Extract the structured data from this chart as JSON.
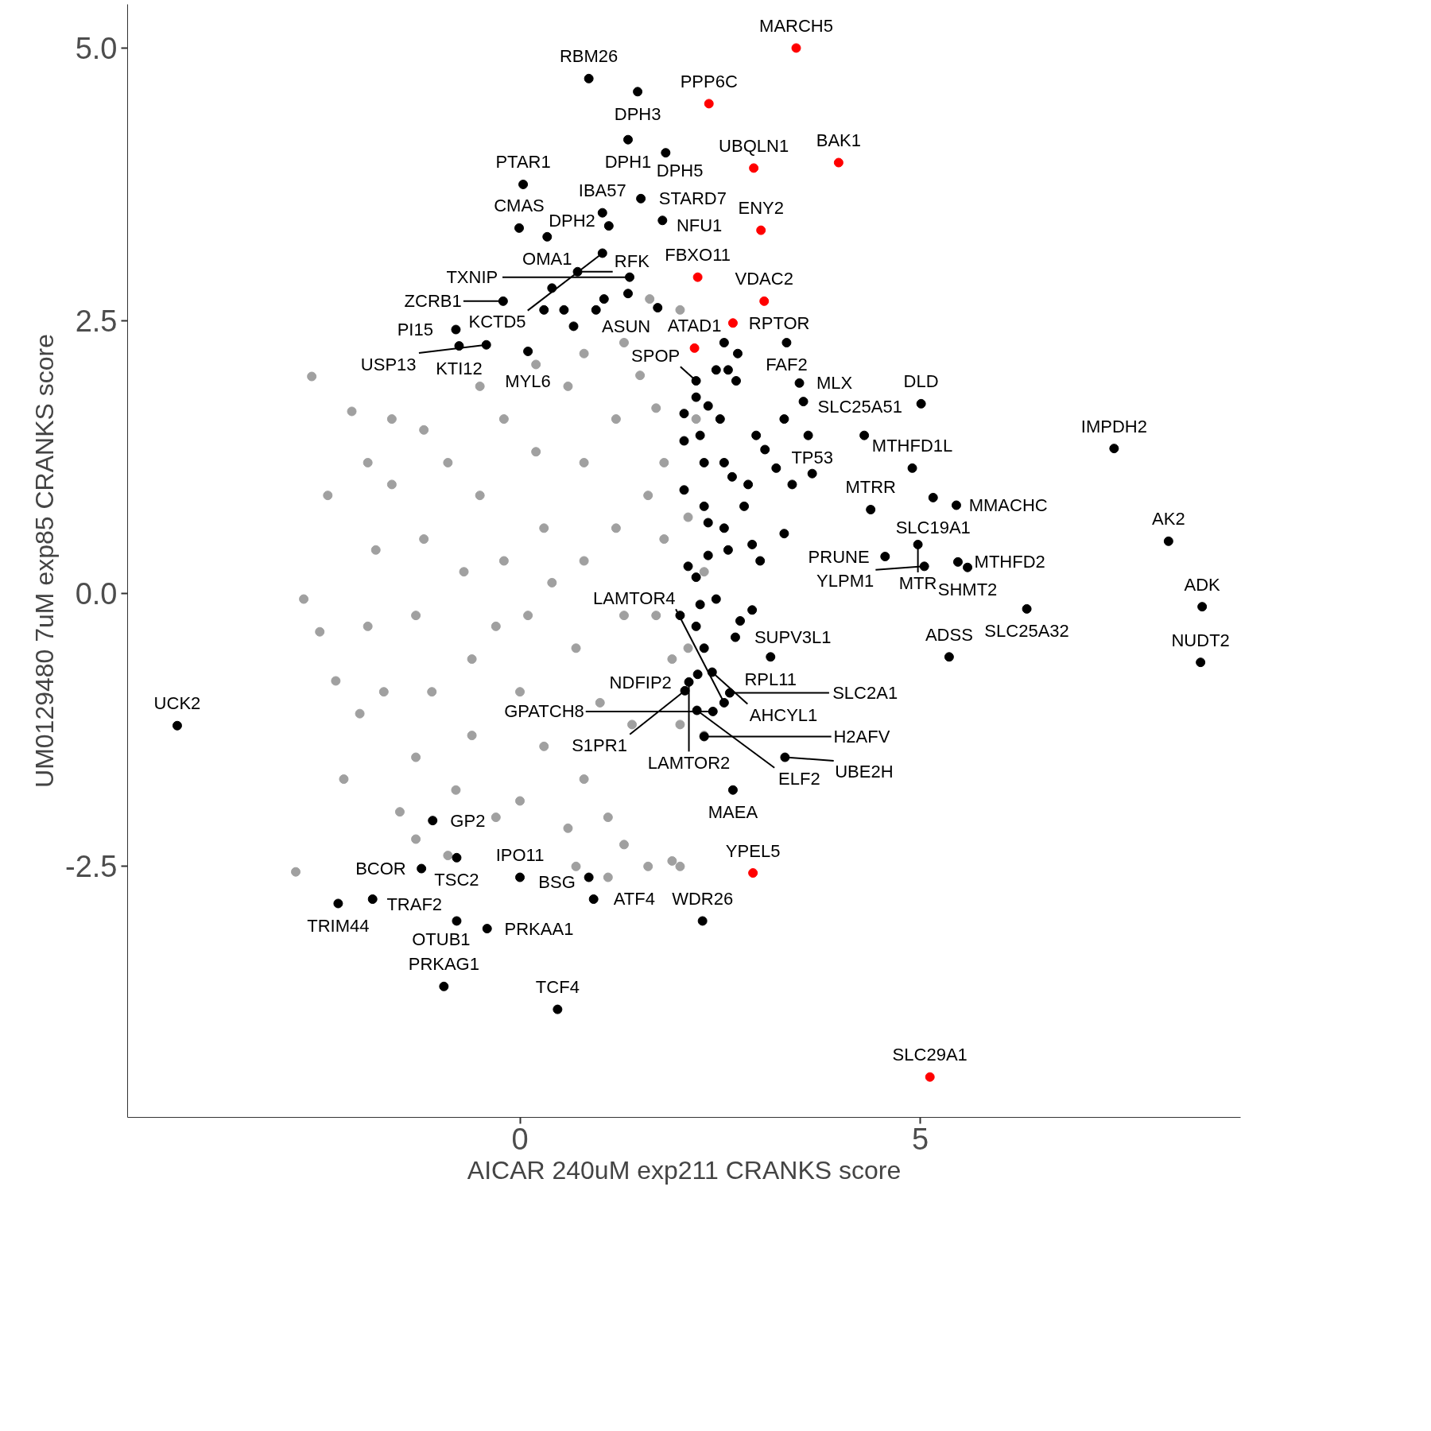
{
  "chart_data": {
    "type": "scatter",
    "xlabel": "AICAR 240uM exp211 CRANKS score",
    "ylabel": "UM0129480 7uM exp85 CRANKS score",
    "xlim": [
      -4.9,
      9.0
    ],
    "ylim": [
      -4.8,
      5.4
    ],
    "xticks": [
      0,
      5
    ],
    "yticks": [
      {
        "value": -2.5,
        "label": "-2.5"
      },
      {
        "value": 0,
        "label": "0.0"
      },
      {
        "value": 2.5,
        "label": "2.5"
      },
      {
        "value": 5,
        "label": "5.0"
      }
    ],
    "grid": false,
    "marker": "circle",
    "series": [
      {
        "color": "#a0a0a0",
        "x": [
          -2.6,
          -2.1,
          -1.6,
          -2.4,
          -1.9,
          -2.7,
          -2.5,
          -2.3,
          -2.0,
          -2.2,
          -1.5,
          -2.8,
          -1.3,
          -0.9,
          -0.3,
          0.6,
          1.1,
          1.3,
          1.6,
          1.9,
          1.9,
          1.8,
          1.8,
          1.7,
          1.3,
          0.8,
          0.2,
          -0.5,
          -1.2,
          -1.6,
          -1.8,
          -1.9,
          -1.7,
          -1.3,
          -0.8,
          0.0,
          0.8,
          1.4,
          1.7,
          1.6,
          1.2,
          0.6,
          -0.2,
          -0.9,
          -1.2,
          -1.3,
          -1.1,
          -0.6,
          0.3,
          1.0,
          1.3,
          1.2,
          0.8,
          0.2,
          -0.5,
          -0.7,
          -0.6,
          0.0,
          0.7,
          0.8,
          0.3,
          -0.2,
          0.1,
          0.4,
          -0.3,
          1.5,
          1.62,
          2.0,
          2.2,
          2.1,
          2.3,
          2.1,
          2.0,
          2.3,
          2.0,
          0.7,
          1.1
        ],
        "values": [
          1.99,
          1.67,
          1.6,
          0.9,
          1.2,
          -0.05,
          -0.35,
          -0.8,
          -1.1,
          -1.7,
          -2.0,
          -2.55,
          -2.25,
          -2.4,
          -2.05,
          -2.15,
          -2.05,
          -2.3,
          -2.5,
          -2.45,
          -0.6,
          0.5,
          1.2,
          1.7,
          2.3,
          2.2,
          2.1,
          1.9,
          1.5,
          1.0,
          0.4,
          -0.3,
          -0.9,
          -1.5,
          -1.8,
          -1.9,
          -1.7,
          -1.2,
          -0.2,
          0.9,
          1.6,
          1.9,
          1.6,
          1.2,
          0.5,
          -0.2,
          -0.9,
          -1.3,
          -1.4,
          -1.0,
          -0.2,
          0.6,
          1.2,
          1.3,
          0.9,
          0.2,
          -0.6,
          -0.9,
          -0.5,
          0.3,
          0.6,
          0.3,
          -0.2,
          0.1,
          -0.3,
          2.0,
          2.7,
          2.6,
          1.6,
          0.7,
          0.2,
          -0.5,
          -1.2,
          -1.3,
          -2.5,
          -2.5,
          -2.6
        ]
      },
      {
        "color": "#000000",
        "x": [
          0.86,
          1.47,
          1.35,
          1.82,
          0.04,
          1.03,
          1.51,
          -0.01,
          1.11,
          1.78,
          0.34,
          1.03,
          1.37,
          0.72,
          -0.21,
          1.72,
          -0.8,
          -0.76,
          -0.42,
          0.1,
          2.2,
          3.33,
          3.49,
          3.54,
          5.01,
          3.06,
          4.9,
          7.42,
          4.38,
          5.16,
          5.45,
          4.97,
          5.47,
          8.1,
          4.56,
          8.52,
          5.59,
          5.05,
          6.33,
          8.5,
          5.36,
          2.69,
          3.13,
          2.22,
          2.11,
          2.06,
          2.62,
          2.41,
          2.21,
          2.3,
          3.31,
          2.66,
          -4.28,
          -1.09,
          -0.79,
          -1.23,
          -2.27,
          -1.84,
          -0.79,
          -0.41,
          0.0,
          -0.95,
          0.47,
          0.86,
          0.92,
          2.28,
          2.4,
          2.55,
          2.05,
          2.2,
          2.35,
          2.5,
          2.7,
          2.72,
          2.6,
          2.45,
          2.05,
          2.25,
          2.55,
          2.65,
          2.3,
          2.85,
          2.95,
          3.3,
          3.6,
          3.2,
          3.4,
          3.65,
          4.3,
          2.05,
          2.3,
          2.35,
          2.55,
          2.8,
          2.9,
          3.0,
          3.3,
          2.6,
          2.35,
          2.1,
          2.2,
          2.25,
          2.45,
          2.0,
          2.2,
          2.3,
          2.75,
          2.9,
          0.3,
          0.55,
          0.67,
          0.95,
          1.05,
          0.4,
          1.35,
          2.55
        ],
        "values": [
          4.72,
          4.6,
          4.16,
          4.04,
          3.75,
          3.49,
          3.62,
          3.35,
          3.37,
          3.42,
          3.27,
          3.12,
          2.9,
          2.95,
          2.68,
          2.62,
          2.42,
          2.27,
          2.28,
          2.22,
          1.95,
          2.3,
          1.93,
          1.76,
          1.74,
          1.32,
          1.15,
          1.33,
          0.77,
          0.88,
          0.81,
          0.45,
          0.29,
          0.48,
          0.34,
          -0.12,
          0.24,
          0.25,
          -0.14,
          -0.63,
          -0.58,
          -0.4,
          -0.58,
          -0.74,
          -0.81,
          -0.89,
          -0.91,
          -1.08,
          -1.07,
          -1.31,
          -1.5,
          -1.8,
          -1.21,
          -2.08,
          -2.42,
          -2.52,
          -2.84,
          -2.8,
          -3.0,
          -3.07,
          -2.6,
          -3.6,
          -3.81,
          -2.6,
          -2.8,
          -3.0,
          -0.72,
          -1.0,
          1.65,
          1.8,
          1.72,
          1.6,
          1.95,
          2.2,
          2.05,
          2.05,
          1.4,
          1.45,
          1.2,
          1.07,
          1.2,
          1.0,
          1.45,
          1.6,
          1.45,
          1.15,
          1.0,
          1.1,
          1.45,
          0.95,
          0.8,
          0.65,
          0.6,
          0.8,
          0.45,
          0.3,
          0.55,
          0.4,
          0.35,
          0.25,
          0.15,
          -0.1,
          -0.05,
          -0.2,
          -0.3,
          -0.5,
          -0.25,
          -0.15,
          2.6,
          2.6,
          2.45,
          2.6,
          2.7,
          2.8,
          2.75,
          2.3
        ]
      },
      {
        "color": "#ff0000",
        "x": [
          3.45,
          2.36,
          3.98,
          2.92,
          3.01,
          2.22,
          3.05,
          2.66,
          2.18,
          2.91,
          5.12
        ],
        "values": [
          5.0,
          4.49,
          3.95,
          3.9,
          3.33,
          2.9,
          2.68,
          2.48,
          2.25,
          -2.56,
          -4.43
        ]
      }
    ],
    "annotations": [
      {
        "text": "MARCH5",
        "x": 3.45,
        "y": 5.0
      },
      {
        "text": "PPP6C",
        "x": 2.36,
        "y": 4.49
      },
      {
        "text": "BAK1",
        "x": 3.98,
        "y": 3.95
      },
      {
        "text": "UBQLN1",
        "x": 2.92,
        "y": 3.9
      },
      {
        "text": "ENY2",
        "x": 3.01,
        "y": 3.33
      },
      {
        "text": "FBXO11",
        "x": 2.22,
        "y": 2.9
      },
      {
        "text": "VDAC2",
        "x": 3.05,
        "y": 2.68
      },
      {
        "text": "RPTOR",
        "x": 2.66,
        "y": 2.48
      },
      {
        "text": "ATAD1",
        "x": 2.18,
        "y": 2.25
      },
      {
        "text": "YPEL5",
        "x": 2.91,
        "y": -2.56
      },
      {
        "text": "SLC29A1",
        "x": 5.12,
        "y": -4.43
      },
      {
        "text": "RBM26",
        "x": 0.86,
        "y": 4.72
      },
      {
        "text": "DPH3",
        "x": 1.47,
        "y": 4.6
      },
      {
        "text": "DPH1",
        "x": 1.35,
        "y": 4.16
      },
      {
        "text": "DPH5",
        "x": 1.82,
        "y": 4.04
      },
      {
        "text": "PTAR1",
        "x": 0.04,
        "y": 3.75
      },
      {
        "text": "IBA57",
        "x": 1.03,
        "y": 3.49
      },
      {
        "text": "STARD7",
        "x": 1.51,
        "y": 3.62
      },
      {
        "text": "CMAS",
        "x": -0.01,
        "y": 3.35
      },
      {
        "text": "DPH2",
        "x": 1.11,
        "y": 3.37
      },
      {
        "text": "NFU1",
        "x": 1.78,
        "y": 3.42
      },
      {
        "text": "OMA1",
        "x": 0.34,
        "y": 3.27
      },
      {
        "text": "KCTD5",
        "x": 1.03,
        "y": 3.12
      },
      {
        "text": "TXNIP",
        "x": 1.37,
        "y": 2.9
      },
      {
        "text": "RFK",
        "x": 0.72,
        "y": 2.95
      },
      {
        "text": "ZCRB1",
        "x": -0.21,
        "y": 2.68
      },
      {
        "text": "ASUN",
        "x": 1.72,
        "y": 2.62
      },
      {
        "text": "PI15",
        "x": -0.8,
        "y": 2.42
      },
      {
        "text": "KTI12",
        "x": -0.76,
        "y": 2.27
      },
      {
        "text": "USP13",
        "x": -0.42,
        "y": 2.28
      },
      {
        "text": "MYL6",
        "x": 0.1,
        "y": 2.22
      },
      {
        "text": "SPOP",
        "x": 2.2,
        "y": 1.95
      },
      {
        "text": "FAF2",
        "x": 3.33,
        "y": 2.3
      },
      {
        "text": "MLX",
        "x": 3.49,
        "y": 1.93
      },
      {
        "text": "SLC25A51",
        "x": 3.54,
        "y": 1.76
      },
      {
        "text": "DLD",
        "x": 5.01,
        "y": 1.74
      },
      {
        "text": "TP53",
        "x": 3.06,
        "y": 1.32
      },
      {
        "text": "MTHFD1L",
        "x": 4.9,
        "y": 1.15
      },
      {
        "text": "IMPDH2",
        "x": 7.42,
        "y": 1.33
      },
      {
        "text": "MTRR",
        "x": 4.38,
        "y": 0.77
      },
      {
        "text": "SLC19A1",
        "x": 5.16,
        "y": 0.88
      },
      {
        "text": "MMACHC",
        "x": 5.45,
        "y": 0.81
      },
      {
        "text": "MTR",
        "x": 4.97,
        "y": 0.45
      },
      {
        "text": "MTHFD2",
        "x": 5.47,
        "y": 0.29
      },
      {
        "text": "AK2",
        "x": 8.1,
        "y": 0.48
      },
      {
        "text": "PRUNE",
        "x": 4.56,
        "y": 0.34
      },
      {
        "text": "ADK",
        "x": 8.52,
        "y": -0.12
      },
      {
        "text": "SHMT2",
        "x": 5.59,
        "y": 0.24
      },
      {
        "text": "YLPM1",
        "x": 5.05,
        "y": 0.25
      },
      {
        "text": "SLC25A32",
        "x": 6.33,
        "y": -0.14
      },
      {
        "text": "NUDT2",
        "x": 8.5,
        "y": -0.63
      },
      {
        "text": "ADSS",
        "x": 5.36,
        "y": -0.58
      },
      {
        "text": "SUPV3L1",
        "x": 2.69,
        "y": -0.4
      },
      {
        "text": "RPL11",
        "x": 3.13,
        "y": -0.58
      },
      {
        "text": "NDFIP2",
        "x": 2.22,
        "y": -0.74
      },
      {
        "text": "AHCYL1",
        "x": 2.4,
        "y": -0.72
      },
      {
        "text": "LAMTOR2",
        "x": 2.11,
        "y": -0.81
      },
      {
        "text": "S1PR1",
        "x": 2.06,
        "y": -0.89
      },
      {
        "text": "SLC2A1",
        "x": 2.62,
        "y": -0.91
      },
      {
        "text": "GPATCH8",
        "x": 2.41,
        "y": -1.08
      },
      {
        "text": "ELF2",
        "x": 2.21,
        "y": -1.07
      },
      {
        "text": "LAMTOR4",
        "x": 2.55,
        "y": -1.0
      },
      {
        "text": "H2AFV",
        "x": 2.3,
        "y": -1.31
      },
      {
        "text": "UBE2H",
        "x": 3.31,
        "y": -1.5
      },
      {
        "text": "MAEA",
        "x": 2.66,
        "y": -1.8
      },
      {
        "text": "UCK2",
        "x": -4.28,
        "y": -1.21
      },
      {
        "text": "GP2",
        "x": -1.09,
        "y": -2.08
      },
      {
        "text": "TSC2",
        "x": -0.79,
        "y": -2.42
      },
      {
        "text": "BCOR",
        "x": -1.23,
        "y": -2.52
      },
      {
        "text": "TRIM44",
        "x": -2.27,
        "y": -2.84
      },
      {
        "text": "TRAF2",
        "x": -1.84,
        "y": -2.8
      },
      {
        "text": "OTUB1",
        "x": -0.79,
        "y": -3.0
      },
      {
        "text": "PRKAA1",
        "x": -0.41,
        "y": -3.07
      },
      {
        "text": "IPO11",
        "x": 0.0,
        "y": -2.6
      },
      {
        "text": "PRKAG1",
        "x": -0.95,
        "y": -3.6
      },
      {
        "text": "TCF4",
        "x": 0.47,
        "y": -3.81
      },
      {
        "text": "BSG",
        "x": 0.86,
        "y": -2.6
      },
      {
        "text": "ATF4",
        "x": 0.92,
        "y": -2.8
      },
      {
        "text": "WDR26",
        "x": 2.28,
        "y": -3.0
      }
    ]
  }
}
